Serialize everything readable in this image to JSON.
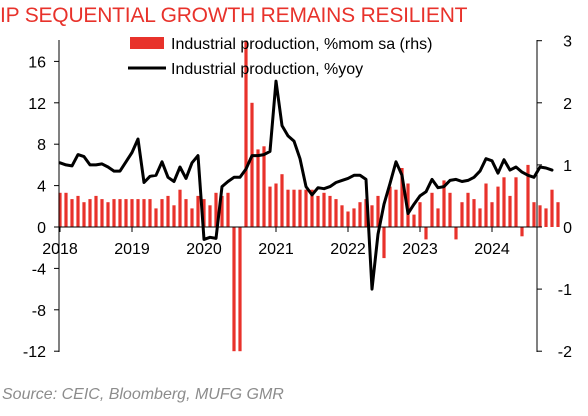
{
  "title": "IP SEQUENTIAL GROWTH REMAINS RESILIENT",
  "source": "Source: CEIC, Bloomberg, MUFG GMR",
  "colors": {
    "title": "#e8322b",
    "bar": "#e8322b",
    "line": "#000000",
    "source": "#8c8c8c"
  },
  "chart_data": {
    "type": "bar+line",
    "x_tick_labels": [
      "2018",
      "2019",
      "2020",
      "2021",
      "2022",
      "2023",
      "2024"
    ],
    "y_left": {
      "ticks": [
        "16",
        "12",
        "8",
        "4",
        "0",
        "-4",
        "-8",
        "-12"
      ],
      "ylim": [
        -12,
        18
      ]
    },
    "y_right": {
      "ticks": [
        "3",
        "2",
        "1",
        "0",
        "-1",
        "-2"
      ],
      "ylim": [
        -2,
        3
      ]
    },
    "legend": [
      "Industrial production, %mom sa (rhs)",
      "Industrial production, %yoy"
    ],
    "series": [
      {
        "name": "Industrial production, %mom sa (rhs)",
        "type": "bar",
        "axis": "right",
        "start": "2018-01",
        "values": [
          0.55,
          0.55,
          0.45,
          0.5,
          0.4,
          0.45,
          0.5,
          0.45,
          0.4,
          0.45,
          0.45,
          0.45,
          0.45,
          0.45,
          0.45,
          0.45,
          0.3,
          0.45,
          0.5,
          0.35,
          0.6,
          0.45,
          0.3,
          0.5,
          0.45,
          0.35,
          0.55,
          0.5,
          0.55,
          -2.0,
          -2.0,
          3.0,
          2.0,
          1.25,
          1.3,
          0.65,
          0.7,
          0.85,
          0.6,
          0.6,
          0.6,
          0.6,
          0.6,
          0.5,
          0.55,
          0.5,
          0.45,
          0.35,
          0.25,
          0.3,
          0.4,
          0.45,
          0.35,
          0.5,
          -0.5,
          0.65,
          0.6,
          0.95,
          0.7,
          0.2,
          0.4,
          -0.2,
          0.55,
          0.3,
          0.75,
          0.55,
          -0.2,
          0.4,
          0.55,
          0.45,
          0.3,
          0.7,
          0.4,
          0.65,
          0.8,
          0.5,
          0.8,
          -0.15,
          1.0,
          0.4,
          0.35,
          0.3,
          0.6,
          0.4
        ]
      },
      {
        "name": "Industrial production, %yoy",
        "type": "line",
        "axis": "left",
        "start": "2018-01",
        "values": [
          6.2,
          6.0,
          5.9,
          7.0,
          6.8,
          6.0,
          6.0,
          6.1,
          5.8,
          5.4,
          5.4,
          6.3,
          7.2,
          8.5,
          4.3,
          4.9,
          5.0,
          6.3,
          4.8,
          4.4,
          5.8,
          4.7,
          6.2,
          6.9,
          -1.2,
          -1.0,
          -1.1,
          3.9,
          4.4,
          4.8,
          4.8,
          5.6,
          6.9,
          6.9,
          7.0,
          7.3,
          14.1,
          9.8,
          8.8,
          8.3,
          6.6,
          3.9,
          3.1,
          3.8,
          3.7,
          3.9,
          4.3,
          4.5,
          4.7,
          5.0,
          5.0,
          4.6,
          -6.0,
          -0.7,
          2.2,
          4.2,
          6.3,
          5.0,
          1.3,
          2.2,
          3.0,
          3.4,
          4.6,
          3.8,
          3.9,
          4.5,
          4.6,
          4.4,
          4.5,
          4.8,
          5.4,
          6.6,
          6.4,
          5.2,
          6.5,
          5.5,
          5.8,
          5.3,
          5.0,
          4.8,
          5.8,
          5.7,
          5.5
        ]
      }
    ]
  }
}
